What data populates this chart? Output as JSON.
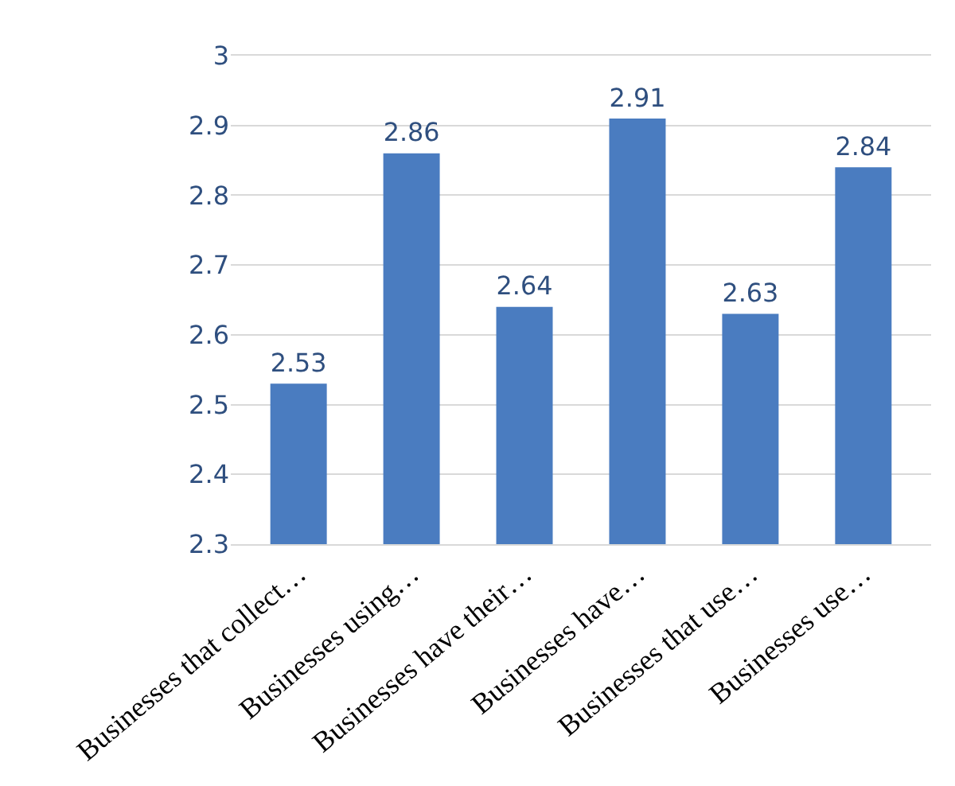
{
  "chart_data": {
    "type": "bar",
    "categories": [
      "Businesses that collect…",
      "Businesses using…",
      "Businesses have their…",
      "Businesses have…",
      "Businesses that use…",
      "Businesses use…"
    ],
    "values": [
      2.53,
      2.86,
      2.64,
      2.91,
      2.63,
      2.84
    ],
    "color": "#4a7cc0",
    "ylim": [
      2.3,
      3
    ],
    "yticks": [
      2.3,
      2.4,
      2.5,
      2.6,
      2.7,
      2.8,
      2.9,
      3
    ],
    "grid": "y",
    "data_labels": true,
    "legend": false
  }
}
